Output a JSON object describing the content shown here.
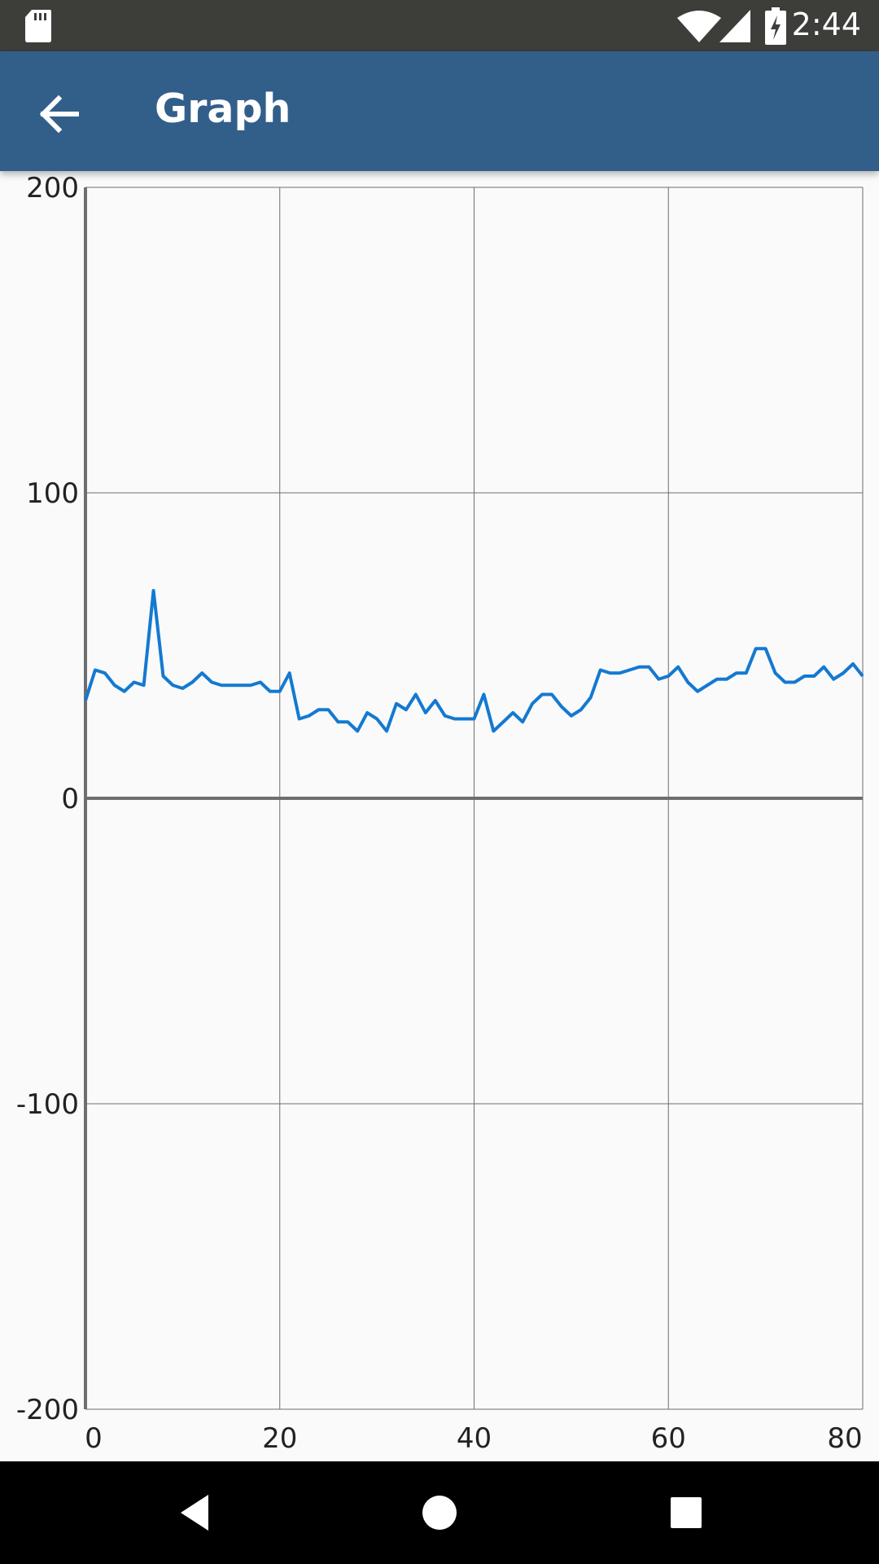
{
  "status_bar": {
    "time": "2:44",
    "icons": [
      "sd-card-icon",
      "wifi-icon",
      "signal-icon",
      "battery-charging-icon"
    ]
  },
  "app_bar": {
    "title": "Graph",
    "back_icon": "arrow-back-icon"
  },
  "nav_bar": {
    "buttons": [
      "back-triangle-icon",
      "home-circle-icon",
      "recents-square-icon"
    ]
  },
  "colors": {
    "status_bar": "#3d3d3a",
    "app_bar": "#325f8a",
    "line": "#1479d1",
    "grid": "#6e6e6e",
    "nav_bar": "#000000"
  },
  "chart_data": {
    "type": "line",
    "title": "",
    "xlabel": "",
    "ylabel": "",
    "xlim": [
      0,
      80
    ],
    "ylim": [
      -200,
      200
    ],
    "x_ticks": [
      "0",
      "20",
      "40",
      "60",
      "80"
    ],
    "y_ticks": [
      "200",
      "100",
      "0",
      "-100",
      "-200"
    ],
    "grid": true,
    "series": [
      {
        "x": [
          0,
          1,
          2,
          3,
          4,
          5,
          6,
          7,
          8,
          9,
          10,
          11,
          12,
          13,
          14,
          15,
          16,
          17,
          18,
          19,
          20,
          21,
          22,
          23,
          24,
          25,
          26,
          27,
          28,
          29,
          30,
          31,
          32,
          33,
          34,
          35,
          36,
          37,
          38,
          39,
          40,
          41,
          42,
          43,
          44,
          45,
          46,
          47,
          48,
          49,
          50,
          51,
          52,
          53,
          54,
          55,
          56,
          57,
          58,
          59,
          60,
          61,
          62,
          63,
          64,
          65,
          66,
          67,
          68,
          69,
          70,
          71,
          72,
          73,
          74,
          75,
          76,
          77,
          78,
          79,
          80
        ],
        "y": [
          32,
          42,
          41,
          37,
          35,
          38,
          37,
          68,
          40,
          37,
          36,
          38,
          41,
          38,
          37,
          37,
          37,
          37,
          38,
          35,
          35,
          41,
          26,
          27,
          29,
          29,
          25,
          25,
          22,
          28,
          26,
          22,
          31,
          29,
          34,
          28,
          32,
          27,
          26,
          26,
          26,
          34,
          22,
          25,
          28,
          25,
          31,
          34,
          34,
          30,
          27,
          29,
          33,
          42,
          41,
          41,
          42,
          43,
          43,
          39,
          40,
          43,
          38,
          35,
          37,
          39,
          39,
          41,
          41,
          49,
          49,
          41,
          38,
          38,
          40,
          40,
          43,
          39,
          41,
          44,
          40
        ]
      }
    ]
  }
}
